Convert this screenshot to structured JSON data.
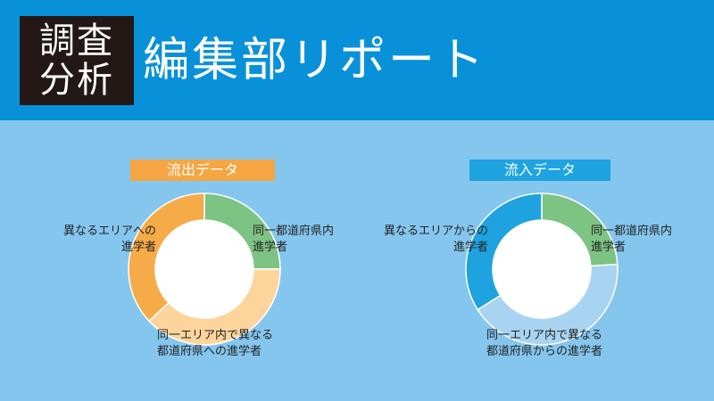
{
  "header": {
    "badge_line1": "調査",
    "badge_line2": "分析",
    "title": "編集部リポート"
  },
  "colors": {
    "header_bg": "#0891d8",
    "page_bg": "#85c6ee",
    "badge_bg": "#231815",
    "outflow_accent": "#f5a542",
    "inflow_accent": "#1ea3e0",
    "same_prefecture": "#7dc383"
  },
  "chart_data": [
    {
      "type": "pie",
      "title": "流出データ",
      "slices": [
        {
          "label": "同一都道府県内進学者",
          "value": 25,
          "color": "#7dc383"
        },
        {
          "label": "同一エリア内で異なる都道府県への進学者",
          "value": 38,
          "color": "#fdd49c"
        },
        {
          "label": "異なるエリアへの進学者",
          "value": 37,
          "color": "#f5ab47"
        }
      ]
    },
    {
      "type": "pie",
      "title": "流入データ",
      "slices": [
        {
          "label": "同一都道府県内進学者",
          "value": 24,
          "color": "#7dc383"
        },
        {
          "label": "同一エリア内で異なる都道府県からの進学者",
          "value": 42,
          "color": "#a8d4f1"
        },
        {
          "label": "異なるエリアからの進学者",
          "value": 34,
          "color": "#1ea3e0"
        }
      ]
    }
  ],
  "labels": {
    "out_same_line1": "同一都道府県内",
    "out_same_line2": "進学者",
    "out_area_line1": "同一エリア内で異なる",
    "out_area_line2": "都道府県への進学者",
    "out_other_line1": "異なるエリアへの",
    "out_other_line2": "進学者",
    "in_same_line1": "同一都道府県内",
    "in_same_line2": "進学者",
    "in_area_line1": "同一エリア内で異なる",
    "in_area_line2": "都道府県からの進学者",
    "in_other_line1": "異なるエリアからの",
    "in_other_line2": "進学者"
  }
}
